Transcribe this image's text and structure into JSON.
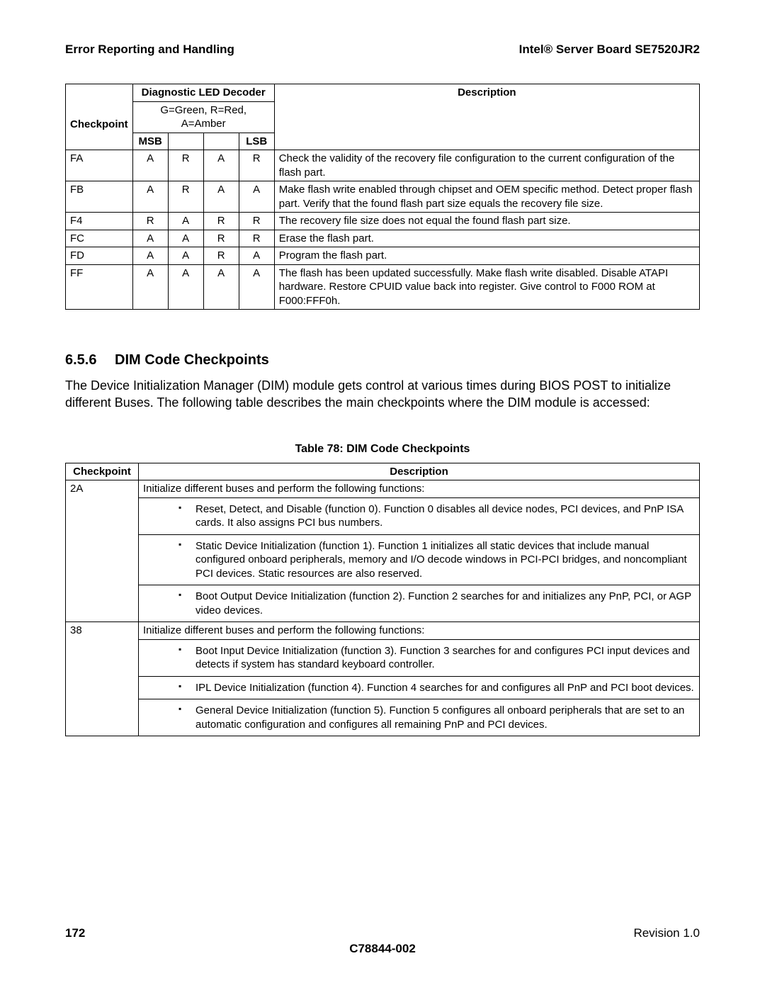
{
  "header": {
    "left": "Error Reporting and Handling",
    "right": "Intel® Server Board SE7520JR2"
  },
  "table1": {
    "h_checkpoint": "Checkpoint",
    "h_diag": "Diagnostic LED Decoder",
    "h_desc": "Description",
    "h_legend": "G=Green, R=Red, A=Amber",
    "h_msb": "MSB",
    "h_lsb": "LSB",
    "rows": [
      {
        "cp": "FA",
        "l0": "A",
        "l1": "R",
        "l2": "A",
        "l3": "R",
        "desc": "Check the validity of the recovery file configuration to the current configuration of the flash part."
      },
      {
        "cp": "FB",
        "l0": "A",
        "l1": "R",
        "l2": "A",
        "l3": "A",
        "desc": "Make flash write enabled through chipset and OEM specific method. Detect proper flash part. Verify that the found flash part size equals the recovery file size."
      },
      {
        "cp": "F4",
        "l0": "R",
        "l1": "A",
        "l2": "R",
        "l3": "R",
        "desc": "The recovery file size does not equal the found flash part size."
      },
      {
        "cp": "FC",
        "l0": "A",
        "l1": "A",
        "l2": "R",
        "l3": "R",
        "desc": "Erase the flash part."
      },
      {
        "cp": "FD",
        "l0": "A",
        "l1": "A",
        "l2": "R",
        "l3": "A",
        "desc": "Program the flash part."
      },
      {
        "cp": "FF",
        "l0": "A",
        "l1": "A",
        "l2": "A",
        "l3": "A",
        "desc": "The flash has been updated successfully. Make flash write disabled. Disable ATAPI hardware. Restore CPUID value back into register. Give control to F000 ROM at F000:FFF0h."
      }
    ]
  },
  "section": {
    "num": "6.5.6",
    "title": "DIM Code Checkpoints",
    "body": "The Device Initialization Manager (DIM) module gets control at various times during BIOS POST to initialize different Buses. The following table describes the main checkpoints where the DIM module is accessed:"
  },
  "table2": {
    "caption": "Table 78: DIM Code Checkpoints",
    "h_checkpoint": "Checkpoint",
    "h_desc": "Description",
    "rows": [
      {
        "cp": "2A",
        "intro": "Initialize different buses and perform the following functions:",
        "bullets": [
          "Reset, Detect, and Disable (function 0). Function 0 disables all device nodes, PCI devices, and PnP ISA cards. It also assigns PCI bus numbers.",
          "Static Device Initialization (function 1). Function 1 initializes all static devices that include manual configured onboard peripherals, memory and I/O decode windows in PCI-PCI bridges, and noncompliant PCI devices. Static resources are also reserved.",
          "Boot Output Device Initialization (function 2). Function 2 searches for and initializes any PnP, PCI, or AGP video devices."
        ]
      },
      {
        "cp": "38",
        "intro": "Initialize different buses and perform the following functions:",
        "bullets": [
          "Boot Input Device Initialization (function 3). Function 3 searches for and configures PCI input devices and detects if system has standard keyboard controller.",
          "IPL Device Initialization (function 4). Function 4 searches for and configures all PnP and PCI boot devices.",
          "General Device Initialization (function 5). Function 5 configures all onboard peripherals that are set to an automatic configuration and configures all remaining PnP and PCI devices."
        ]
      }
    ]
  },
  "footer": {
    "page": "172",
    "revision": "Revision 1.0",
    "docnum": "C78844-002"
  }
}
